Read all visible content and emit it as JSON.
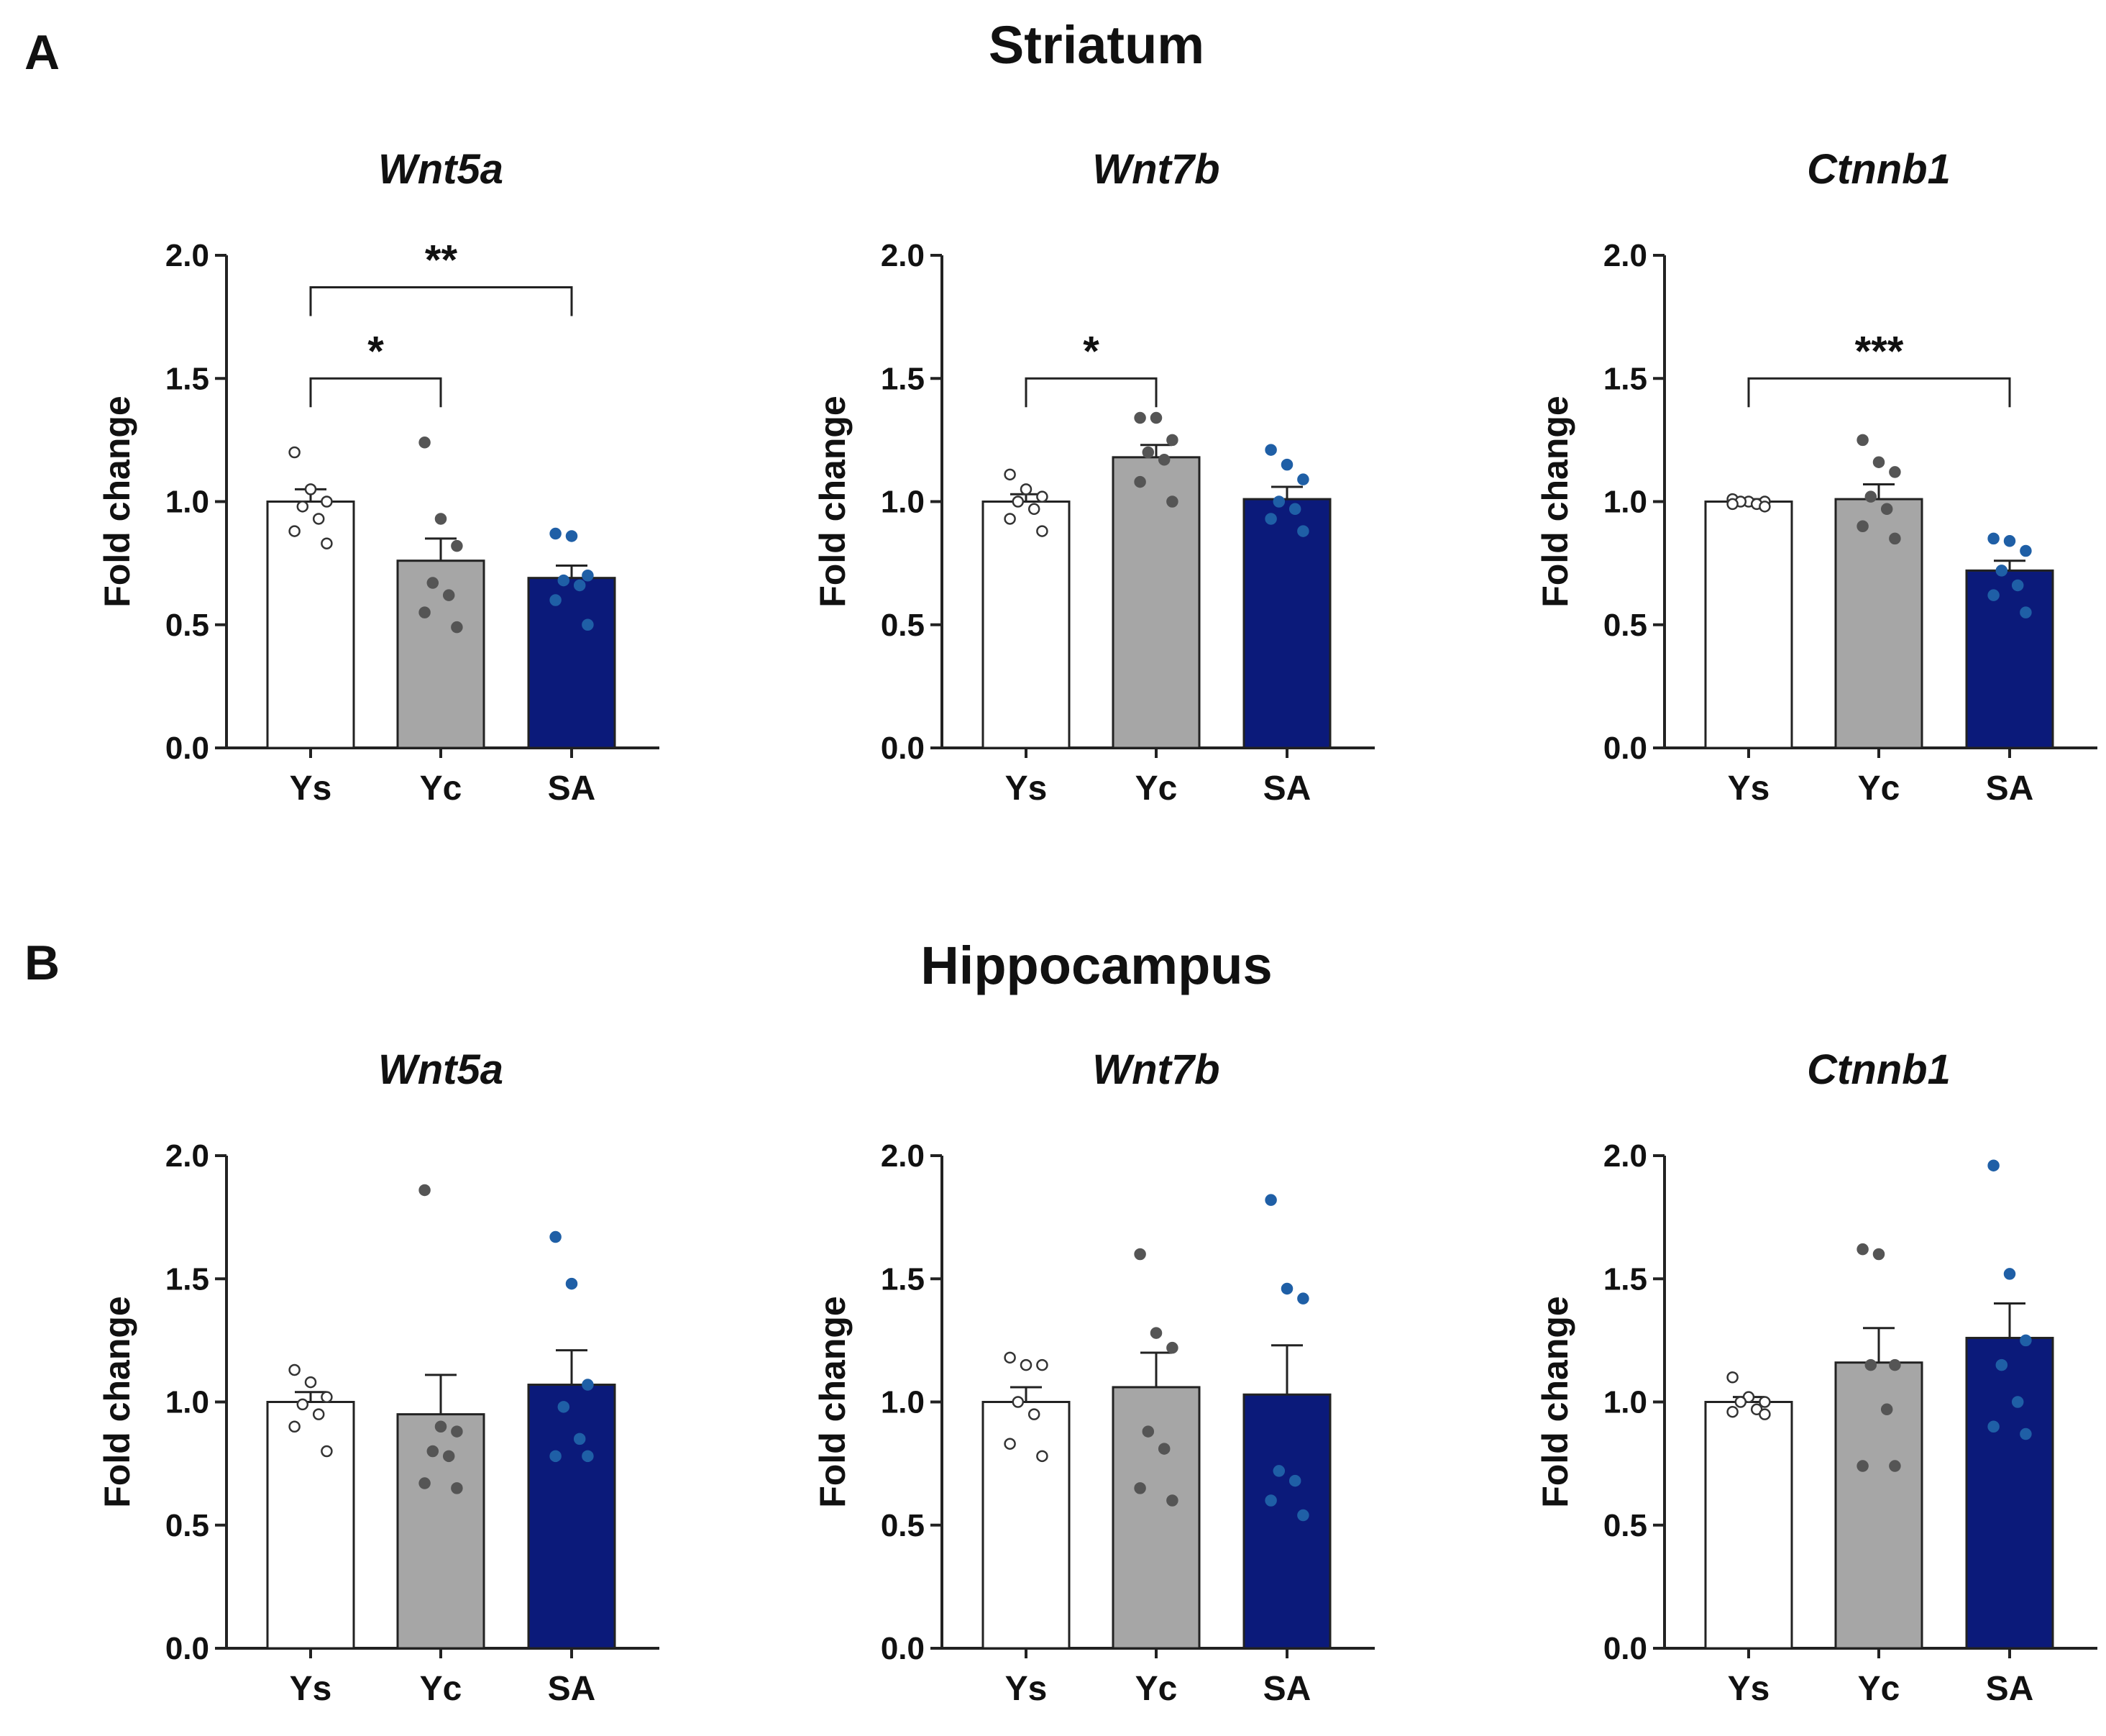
{
  "figure": {
    "panel_letters": [
      "A",
      "B"
    ],
    "sections": [
      "Striatum",
      "Hippocampus"
    ]
  },
  "colors": {
    "Ys": "#ffffff",
    "Yc": "#a6a6a6",
    "SA": "#0b1a7a",
    "Ys_dot": "#ffffff",
    "Yc_dot": "#555555",
    "SA_dot": "#1f5fa6",
    "axis": "#222222"
  },
  "chart_data": [
    {
      "type": "bar",
      "section": "Striatum",
      "title": "Wnt5a",
      "categories": [
        "Ys",
        "Yc",
        "SA"
      ],
      "values": [
        1.0,
        0.76,
        0.69
      ],
      "sem": [
        0.05,
        0.09,
        0.05
      ],
      "points": [
        [
          1.2,
          1.05,
          1.0,
          0.98,
          0.93,
          0.88,
          0.83
        ],
        [
          1.24,
          0.93,
          0.82,
          0.67,
          0.62,
          0.55,
          0.49
        ],
        [
          0.87,
          0.86,
          0.7,
          0.68,
          0.66,
          0.6,
          0.5
        ]
      ],
      "ylabel": "Fold change",
      "xlabel": "",
      "ylim": [
        0,
        2.0
      ],
      "yticks": [
        "0.0",
        "0.5",
        "1.0",
        "1.5",
        "2.0"
      ],
      "significance": [
        {
          "from": 0,
          "to": 1,
          "label": "*"
        },
        {
          "from": 0,
          "to": 2,
          "label": "**"
        }
      ]
    },
    {
      "type": "bar",
      "section": "Striatum",
      "title": "Wnt7b",
      "categories": [
        "Ys",
        "Yc",
        "SA"
      ],
      "values": [
        1.0,
        1.18,
        1.01
      ],
      "sem": [
        0.03,
        0.05,
        0.05
      ],
      "points": [
        [
          1.11,
          1.05,
          1.02,
          1.0,
          0.97,
          0.93,
          0.88
        ],
        [
          1.34,
          1.34,
          1.25,
          1.2,
          1.17,
          1.08,
          1.0
        ],
        [
          1.21,
          1.15,
          1.09,
          1.0,
          0.97,
          0.93,
          0.88
        ]
      ],
      "ylabel": "Fold change",
      "xlabel": "",
      "ylim": [
        0,
        2.0
      ],
      "yticks": [
        "0.0",
        "0.5",
        "1.0",
        "1.5",
        "2.0"
      ],
      "significance": [
        {
          "from": 0,
          "to": 1,
          "label": "*"
        }
      ]
    },
    {
      "type": "bar",
      "section": "Striatum",
      "title": "Ctnnb1",
      "categories": [
        "Ys",
        "Yc",
        "SA"
      ],
      "values": [
        1.0,
        1.01,
        0.72
      ],
      "sem": [
        0.01,
        0.06,
        0.04
      ],
      "points": [
        [
          1.01,
          1.0,
          1.0,
          1.0,
          0.99,
          0.99,
          0.98
        ],
        [
          1.25,
          1.16,
          1.12,
          1.02,
          0.97,
          0.9,
          0.85
        ],
        [
          0.85,
          0.84,
          0.8,
          0.72,
          0.66,
          0.62,
          0.55
        ]
      ],
      "ylabel": "Fold change",
      "xlabel": "",
      "ylim": [
        0,
        2.0
      ],
      "yticks": [
        "0.0",
        "0.5",
        "1.0",
        "1.5",
        "2.0"
      ],
      "significance": [
        {
          "from": 0,
          "to": 2,
          "label": "***"
        }
      ]
    },
    {
      "type": "bar",
      "section": "Hippocampus",
      "title": "Wnt5a",
      "categories": [
        "Ys",
        "Yc",
        "SA"
      ],
      "values": [
        1.0,
        0.95,
        1.07
      ],
      "sem": [
        0.04,
        0.16,
        0.14
      ],
      "points": [
        [
          1.13,
          1.08,
          1.02,
          0.99,
          0.95,
          0.9,
          0.8
        ],
        [
          1.86,
          0.9,
          0.88,
          0.8,
          0.78,
          0.67,
          0.65
        ],
        [
          1.67,
          1.48,
          1.07,
          0.98,
          0.85,
          0.78,
          0.78
        ]
      ],
      "ylabel": "Fold change",
      "xlabel": "",
      "ylim": [
        0,
        2.0
      ],
      "yticks": [
        "0.0",
        "0.5",
        "1.0",
        "1.5",
        "2.0"
      ],
      "significance": []
    },
    {
      "type": "bar",
      "section": "Hippocampus",
      "title": "Wnt7b",
      "categories": [
        "Ys",
        "Yc",
        "SA"
      ],
      "values": [
        1.0,
        1.06,
        1.03
      ],
      "sem": [
        0.06,
        0.14,
        0.2
      ],
      "points": [
        [
          1.18,
          1.15,
          1.15,
          1.0,
          0.95,
          0.83,
          0.78
        ],
        [
          1.6,
          1.28,
          1.22,
          0.88,
          0.81,
          0.65,
          0.6
        ],
        [
          1.82,
          1.46,
          1.42,
          0.72,
          0.68,
          0.6,
          0.54
        ]
      ],
      "ylabel": "Fold change",
      "xlabel": "",
      "ylim": [
        0,
        2.0
      ],
      "yticks": [
        "0.0",
        "0.5",
        "1.0",
        "1.5",
        "2.0"
      ],
      "significance": []
    },
    {
      "type": "bar",
      "section": "Hippocampus",
      "title": "Ctnnb1",
      "categories": [
        "Ys",
        "Yc",
        "SA"
      ],
      "values": [
        1.0,
        1.16,
        1.26
      ],
      "sem": [
        0.02,
        0.14,
        0.14
      ],
      "points": [
        [
          1.1,
          1.02,
          1.0,
          1.0,
          0.97,
          0.96,
          0.95
        ],
        [
          1.62,
          1.6,
          1.15,
          1.15,
          0.97,
          0.74,
          0.74
        ],
        [
          1.96,
          1.52,
          1.25,
          1.15,
          1.0,
          0.9,
          0.87
        ]
      ],
      "ylabel": "Fold change",
      "xlabel": "",
      "ylim": [
        0,
        2.0
      ],
      "yticks": [
        "0.0",
        "0.5",
        "1.0",
        "1.5",
        "2.0"
      ],
      "significance": []
    }
  ]
}
